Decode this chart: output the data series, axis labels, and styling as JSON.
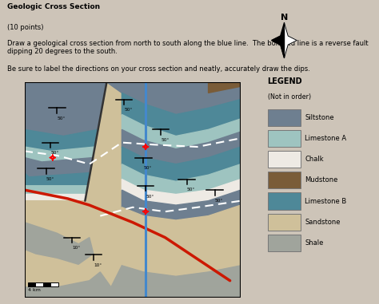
{
  "title": "Geologic Cross Section",
  "subtitle_lines": [
    "(10 points)",
    "Draw a geological cross section from north to south along the blue line.  The bold red line is a reverse fault dipping 20 degrees to the south.",
    "Be sure to label the directions on your cross section and neatly, accurately draw the dips."
  ],
  "bg_color": "#cdc4b8",
  "map_border_color": "#888880",
  "legend_items": [
    {
      "label": "Siltstone",
      "color": "#6e7f90"
    },
    {
      "label": "Limestone A",
      "color": "#9ec4c0"
    },
    {
      "label": "Chalk",
      "color": "#eeeae4"
    },
    {
      "label": "Mudstone",
      "color": "#7a5c38"
    },
    {
      "label": "Limestone B",
      "color": "#4e8898"
    },
    {
      "label": "Sandstone",
      "color": "#cfc09a"
    },
    {
      "label": "Shale",
      "color": "#a0a49c"
    }
  ],
  "scale_label": "4 km",
  "blue_line_color": "#4488cc",
  "red_fault_color": "#cc1800",
  "white_dash_color": "#ffffff",
  "dip_label_50": "50°",
  "dip_label_10": "10°"
}
